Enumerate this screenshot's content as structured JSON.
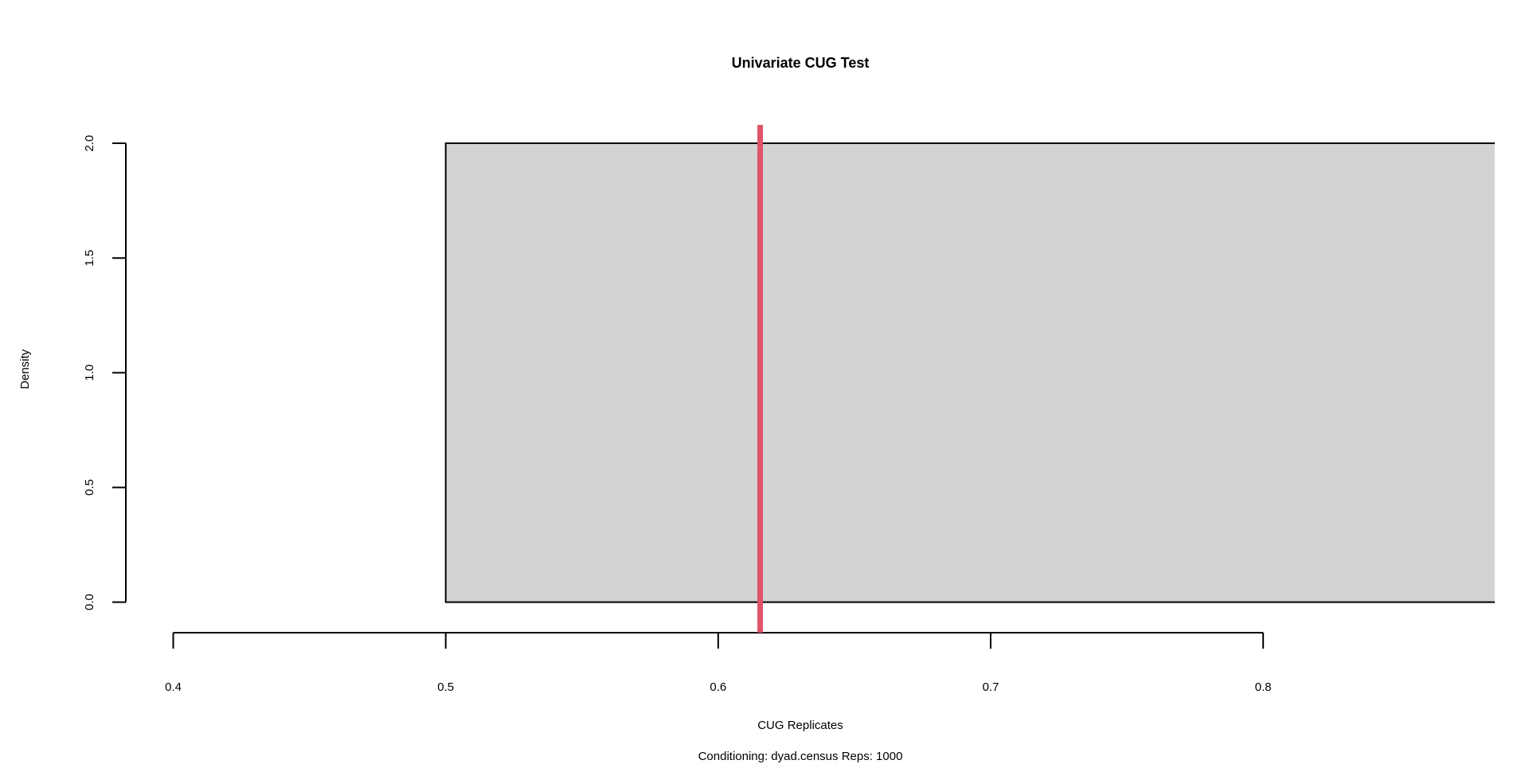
{
  "chart_data": {
    "type": "bar",
    "title": "Univariate CUG Test",
    "xlabel": "CUG Replicates",
    "ylabel": "Density",
    "subtitle": "Conditioning: dyad.census Reps: 1000",
    "xlim": [
      0.375,
      0.885
    ],
    "ylim": [
      -0.05,
      2.08
    ],
    "x_ticks": [
      0.4,
      0.5,
      0.6,
      0.7,
      0.8
    ],
    "x_tick_labels": [
      "0.4",
      "0.5",
      "0.6",
      "0.7",
      "0.8"
    ],
    "y_ticks": [
      0,
      0.5,
      1,
      1.5,
      2
    ],
    "y_tick_labels": [
      "0.0",
      "0.5",
      "1.0",
      "1.5",
      "2.0"
    ],
    "bins": [
      {
        "start": 0.5,
        "end": 1.0,
        "density": 2.0
      }
    ],
    "observed_value": 0.6154,
    "grid": false,
    "colors": {
      "bar_fill": "#d3d3d3",
      "bar_stroke": "#000000",
      "observed_line": "#df536b",
      "axis": "#000000"
    }
  }
}
